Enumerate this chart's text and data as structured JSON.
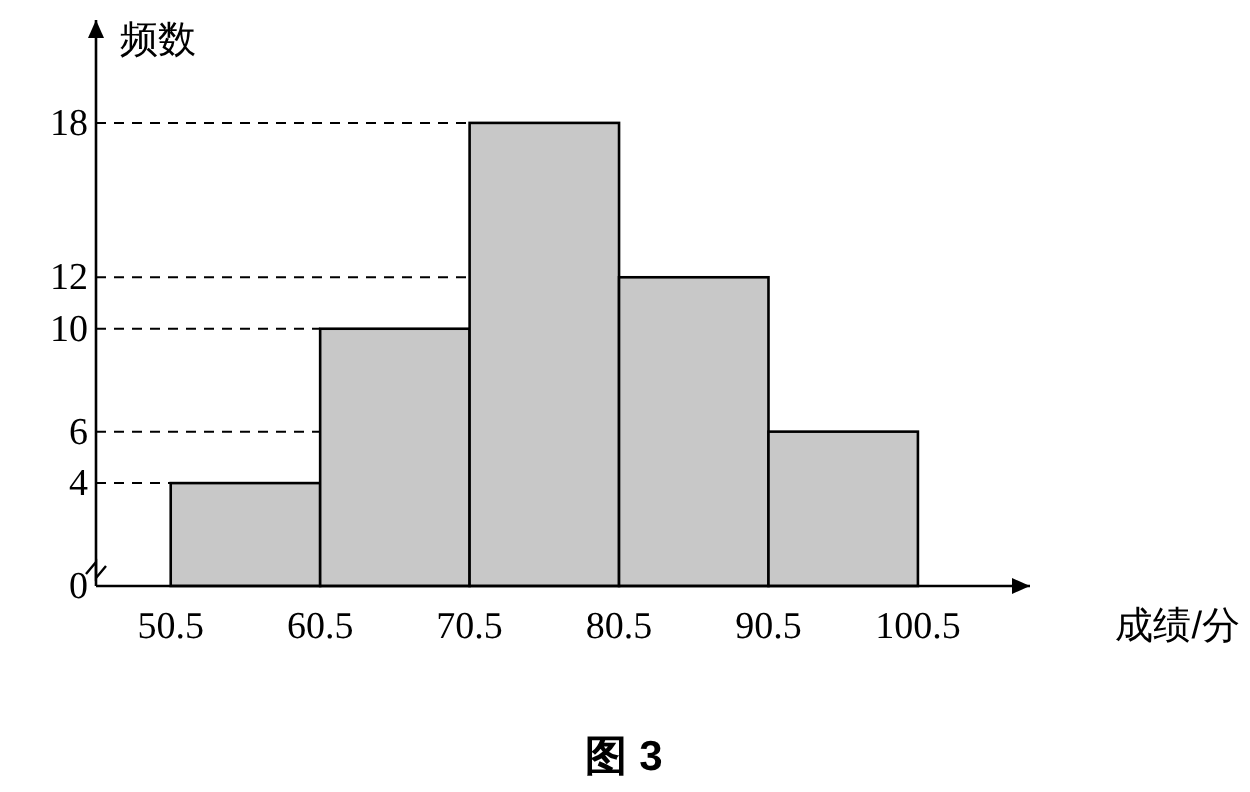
{
  "chart_data": {
    "type": "histogram",
    "ylabel": "频数",
    "xlabel": "成绩/分",
    "bins": [
      50.5,
      60.5,
      70.5,
      80.5,
      90.5,
      100.5
    ],
    "values": [
      4,
      10,
      18,
      12,
      6
    ],
    "color": "#c8c8c8",
    "xlim": [
      45.5,
      108
    ],
    "xticks": [
      50.5,
      60.5,
      70.5,
      80.5,
      90.5,
      100.5
    ],
    "ylim": [
      0,
      22
    ],
    "yticks": [
      0,
      4,
      6,
      10,
      12,
      18
    ],
    "ref_lines": [
      {
        "axis": "y",
        "value": 4,
        "line_style": "dashed"
      },
      {
        "axis": "y",
        "value": 6,
        "line_style": "dashed"
      },
      {
        "axis": "y",
        "value": 10,
        "line_style": "dashed"
      },
      {
        "axis": "y",
        "value": 12,
        "line_style": "dashed"
      },
      {
        "axis": "y",
        "value": 18,
        "line_style": "dashed"
      }
    ],
    "annotations": [
      "图 3"
    ]
  }
}
